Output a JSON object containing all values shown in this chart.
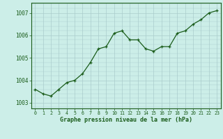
{
  "x": [
    0,
    1,
    2,
    3,
    4,
    5,
    6,
    7,
    8,
    9,
    10,
    11,
    12,
    13,
    14,
    15,
    16,
    17,
    18,
    19,
    20,
    21,
    22,
    23
  ],
  "y": [
    1003.6,
    1003.4,
    1003.3,
    1003.6,
    1003.9,
    1004.0,
    1004.3,
    1004.8,
    1005.4,
    1005.5,
    1006.1,
    1006.2,
    1005.8,
    1005.8,
    1005.4,
    1005.3,
    1005.5,
    1005.5,
    1006.1,
    1006.2,
    1006.5,
    1006.7,
    1007.0,
    1007.1
  ],
  "line_color": "#1a5c1a",
  "marker": "+",
  "bg_color": "#cceee8",
  "grid_color": "#aacccc",
  "xlabel": "Graphe pression niveau de la mer (hPa)",
  "xlabel_color": "#1a5c1a",
  "tick_color": "#1a5c1a",
  "axis_color": "#1a5c1a",
  "ylim": [
    1002.75,
    1007.45
  ],
  "yticks": [
    1003,
    1004,
    1005,
    1006,
    1007
  ],
  "xlim": [
    -0.5,
    23.5
  ],
  "figsize": [
    3.2,
    2.0
  ],
  "dpi": 100
}
